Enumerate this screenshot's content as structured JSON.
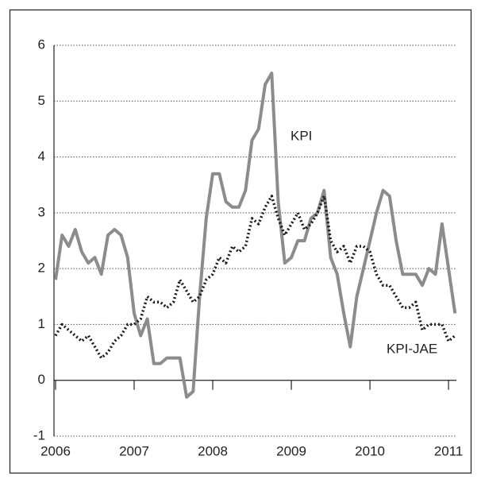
{
  "chart_data": {
    "type": "line",
    "x": [
      2006.0,
      2006.083,
      2006.167,
      2006.25,
      2006.333,
      2006.417,
      2006.5,
      2006.583,
      2006.667,
      2006.75,
      2006.833,
      2006.917,
      2007.0,
      2007.083,
      2007.167,
      2007.25,
      2007.333,
      2007.417,
      2007.5,
      2007.583,
      2007.667,
      2007.75,
      2007.833,
      2007.917,
      2008.0,
      2008.083,
      2008.167,
      2008.25,
      2008.333,
      2008.417,
      2008.5,
      2008.583,
      2008.667,
      2008.75,
      2008.833,
      2008.917,
      2009.0,
      2009.083,
      2009.167,
      2009.25,
      2009.333,
      2009.417,
      2009.5,
      2009.583,
      2009.667,
      2009.75,
      2009.833,
      2009.917,
      2010.0,
      2010.083,
      2010.167,
      2010.25,
      2010.333,
      2010.417,
      2010.5,
      2010.583,
      2010.667,
      2010.75,
      2010.833,
      2010.917,
      2011.0,
      2011.083
    ],
    "series": [
      {
        "name": "KPI",
        "color": "#8c8c8c",
        "style": "solid",
        "values": [
          1.8,
          2.6,
          2.4,
          2.7,
          2.3,
          2.1,
          2.2,
          1.9,
          2.6,
          2.7,
          2.6,
          2.2,
          1.2,
          0.8,
          1.1,
          0.3,
          0.3,
          0.4,
          0.4,
          0.4,
          -0.3,
          -0.2,
          1.5,
          2.9,
          3.7,
          3.7,
          3.2,
          3.1,
          3.1,
          3.4,
          4.3,
          4.5,
          5.3,
          5.5,
          3.2,
          2.1,
          2.2,
          2.5,
          2.5,
          2.9,
          3.0,
          3.4,
          2.2,
          1.9,
          1.2,
          0.6,
          1.5,
          2.0,
          2.5,
          3.0,
          3.4,
          3.3,
          2.5,
          1.9,
          1.9,
          1.9,
          1.7,
          2.0,
          1.9,
          2.8,
          2.0,
          1.2
        ]
      },
      {
        "name": "KPI-JAE",
        "color": "#1a1a1a",
        "style": "dotted",
        "values": [
          0.8,
          1.0,
          0.9,
          0.8,
          0.7,
          0.8,
          0.6,
          0.4,
          0.5,
          0.7,
          0.8,
          1.0,
          1.0,
          1.1,
          1.5,
          1.4,
          1.4,
          1.3,
          1.4,
          1.8,
          1.6,
          1.4,
          1.5,
          1.8,
          1.9,
          2.2,
          2.1,
          2.4,
          2.3,
          2.4,
          2.9,
          2.8,
          3.1,
          3.3,
          2.9,
          2.6,
          2.8,
          3.0,
          2.7,
          2.8,
          3.0,
          3.3,
          2.5,
          2.3,
          2.4,
          2.1,
          2.4,
          2.4,
          2.3,
          1.9,
          1.7,
          1.7,
          1.5,
          1.3,
          1.3,
          1.4,
          0.9,
          1.0,
          1.0,
          1.0,
          0.7,
          0.8
        ]
      }
    ],
    "xlim": [
      2006,
      2011.1
    ],
    "xticks": [
      2006,
      2007,
      2008,
      2009,
      2010,
      2011
    ],
    "ylim": [
      -1,
      6
    ],
    "yticks": [
      -1,
      0,
      1,
      2,
      3,
      4,
      5,
      6
    ],
    "grid": true
  }
}
